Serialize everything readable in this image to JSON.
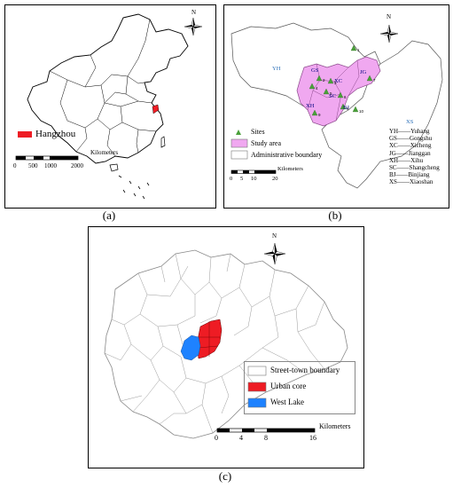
{
  "panel_a": {
    "caption": "(a)",
    "legend_label": "Hangzhou",
    "scale_unit": "Kilometers",
    "scale_ticks": [
      "0",
      "500",
      "1000",
      "2000"
    ],
    "north": "N"
  },
  "panel_b": {
    "caption": "(b)",
    "north": "N",
    "district_labels": [
      {
        "text": "YH",
        "color": "#2a6fb8"
      },
      {
        "text": "XS",
        "color": "#2a6fb8"
      },
      {
        "text": "GS",
        "color": "#000080"
      },
      {
        "text": "XC",
        "color": "#000080"
      },
      {
        "text": "JG",
        "color": "#000080"
      },
      {
        "text": "XH",
        "color": "#000080"
      },
      {
        "text": "SC",
        "color": "#000080"
      },
      {
        "text": "BJ",
        "color": "#000080"
      }
    ],
    "legend": [
      {
        "label": "Sites",
        "symbol": "triangle",
        "color": "#4aa03a"
      },
      {
        "label": "Study area",
        "symbol": "fill",
        "color": "#f0a8f0"
      },
      {
        "label": "Administrative boundary",
        "symbol": "outline",
        "color": "#ffffff"
      }
    ],
    "scale_unit": "Kilometers",
    "scale_ticks": [
      "0",
      "5",
      "10",
      "20"
    ],
    "abbreviations": [
      "YH——Yuhang",
      "GS——Gongshu",
      "XC——Xicheng",
      "JG——Jianggan",
      "XH——Xihu",
      "SC——Shangcheng",
      "BJ——Binjiang",
      "XS——Xiaoshan"
    ],
    "site_labels": [
      "1",
      "2",
      "3",
      "4",
      "5",
      "6",
      "7",
      "8",
      "9",
      "10"
    ]
  },
  "panel_c": {
    "caption": "(c)",
    "north": "N",
    "legend": [
      {
        "label": "Street-town boundary",
        "color": "#ffffff"
      },
      {
        "label": "Urban core",
        "color": "#ee1c24"
      },
      {
        "label": "West Lake",
        "color": "#1e82ff"
      }
    ],
    "scale_unit": "Kilometers",
    "scale_ticks": [
      "0",
      "4",
      "8",
      "16"
    ]
  }
}
